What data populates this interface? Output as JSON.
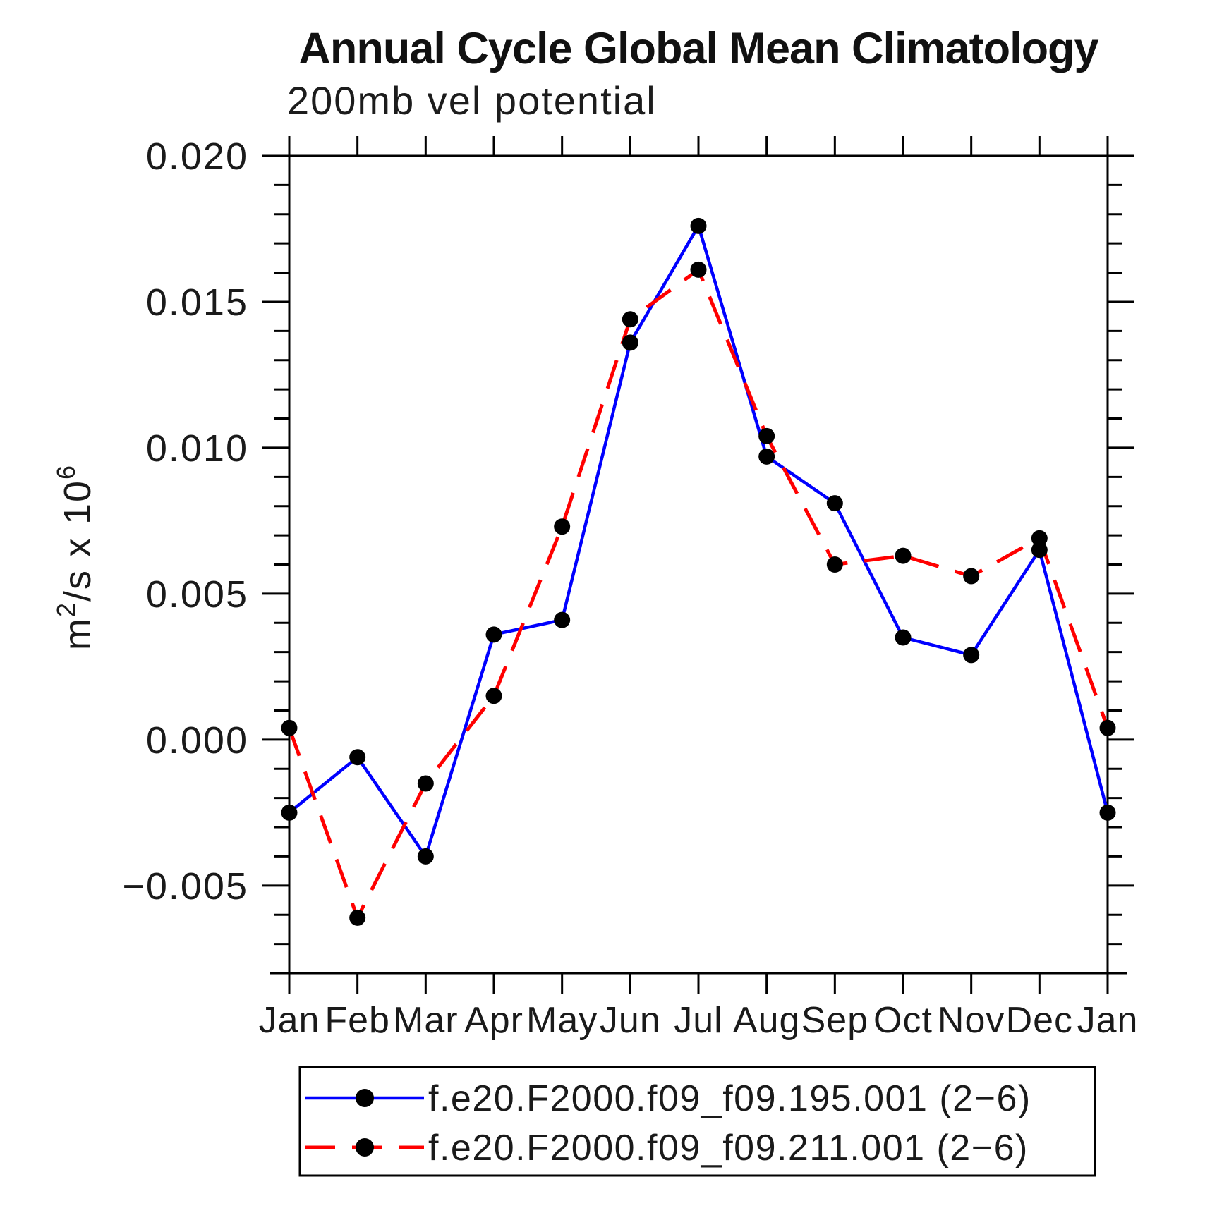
{
  "title": "Annual Cycle Global Mean Climatology",
  "subtitle": "200mb vel potential",
  "y_axis": {
    "parts": {
      "base1": "m",
      "sup1": "2",
      "base2": "/s x 10",
      "sup2": "6"
    }
  },
  "chart_data": {
    "type": "line",
    "title": "Annual Cycle Global Mean Climatology",
    "subtitle": "200mb vel potential",
    "ylabel": "m^2/s x 10^6",
    "xlabel": "",
    "x_categories": [
      "Jan",
      "Feb",
      "Mar",
      "Apr",
      "May",
      "Jun",
      "Jul",
      "Aug",
      "Sep",
      "Oct",
      "Nov",
      "Dec",
      "Jan"
    ],
    "ylim": [
      -0.008,
      0.02
    ],
    "ytick_major_step": 0.005,
    "ytick_minor_step": 0.001,
    "ytick_labels": [
      "0.020",
      "0.015",
      "0.010",
      "0.005",
      "0.000",
      "−0.005"
    ],
    "grid": false,
    "legend_position": "bottom",
    "marker": {
      "shape": "circle",
      "color": "#000000"
    },
    "series": [
      {
        "name": "f.e20.F2000.f09_f09.195.001 (2−6)",
        "color": "#0000ff",
        "line_style": "solid",
        "values": [
          -0.0025,
          -0.0006,
          -0.004,
          0.0036,
          0.0041,
          0.0136,
          0.0176,
          0.0097,
          0.0081,
          0.0035,
          0.0029,
          0.0065,
          -0.0025
        ]
      },
      {
        "name": "f.e20.F2000.f09_f09.211.001 (2−6)",
        "color": "#ff0000",
        "line_style": "dashed",
        "values": [
          0.0004,
          -0.0061,
          -0.0015,
          0.0015,
          0.0073,
          0.0144,
          0.0161,
          0.0104,
          0.006,
          0.0063,
          0.0056,
          0.0069,
          0.0004
        ]
      }
    ]
  }
}
